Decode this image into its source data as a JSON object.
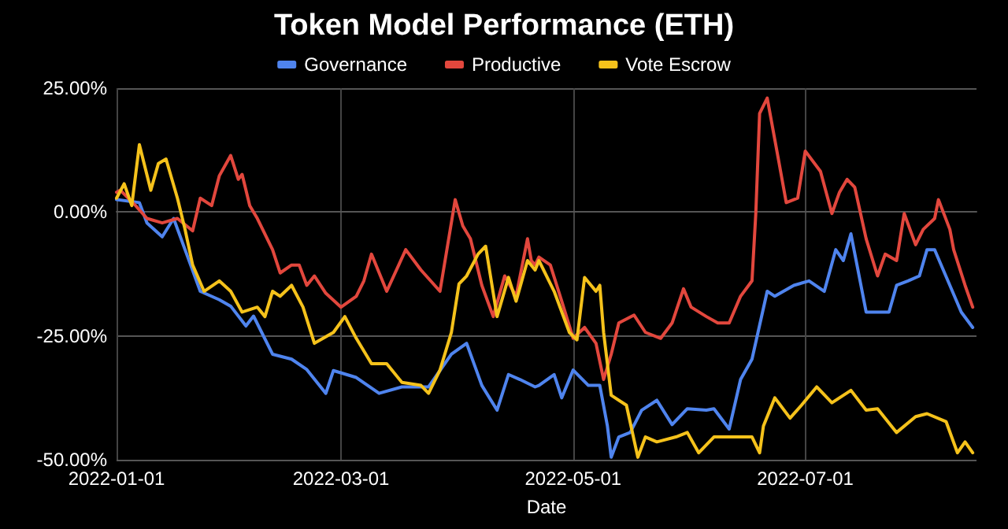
{
  "chart_data": {
    "type": "line",
    "title": "Token Model Performance (ETH)",
    "xlabel": "Date",
    "xlim": [
      "2022-01-01",
      "2022-08-15"
    ],
    "xticks": [
      "2022-01-01",
      "2022-03-01",
      "2022-05-01",
      "2022-07-01"
    ],
    "ylim": [
      -50,
      25
    ],
    "yticks": [
      {
        "value": -50,
        "label": "-50.00%"
      },
      {
        "value": -25,
        "label": "-25.00%"
      },
      {
        "value": 0,
        "label": "0.00%"
      },
      {
        "value": 25,
        "label": "25.00%"
      }
    ],
    "grid": true,
    "legend": "top",
    "marker": "none",
    "line_style": "solid",
    "series": [
      {
        "name": "Governance",
        "color": "#4f84ee",
        "x": [
          "2022-01-01",
          "2022-01-07",
          "2022-01-09",
          "2022-01-13",
          "2022-01-16",
          "2022-01-19",
          "2022-01-23",
          "2022-01-28",
          "2022-01-31",
          "2022-02-04",
          "2022-02-06",
          "2022-02-11",
          "2022-02-16",
          "2022-02-20",
          "2022-02-25",
          "2022-02-27",
          "2022-03-05",
          "2022-03-11",
          "2022-03-17",
          "2022-03-24",
          "2022-03-30",
          "2022-04-03",
          "2022-04-07",
          "2022-04-11",
          "2022-04-14",
          "2022-04-17",
          "2022-04-21",
          "2022-04-22",
          "2022-04-26",
          "2022-04-28",
          "2022-05-01",
          "2022-05-05",
          "2022-05-08",
          "2022-05-10",
          "2022-05-11",
          "2022-05-13",
          "2022-05-16",
          "2022-05-19",
          "2022-05-23",
          "2022-05-27",
          "2022-05-31",
          "2022-06-05",
          "2022-06-07",
          "2022-06-11",
          "2022-06-14",
          "2022-06-17",
          "2022-06-21",
          "2022-06-23",
          "2022-06-28",
          "2022-07-02",
          "2022-07-06",
          "2022-07-09",
          "2022-07-11",
          "2022-07-13",
          "2022-07-17",
          "2022-07-20",
          "2022-07-23",
          "2022-07-25",
          "2022-07-28",
          "2022-07-31",
          "2022-08-02",
          "2022-08-04",
          "2022-08-08",
          "2022-08-11",
          "2022-08-14"
        ],
        "values": [
          2.5,
          1.9,
          -2.2,
          -5,
          -1.3,
          -7.6,
          -16,
          -17.7,
          -19,
          -23,
          -21,
          -28.7,
          -29.7,
          -31.8,
          -36.6,
          -32,
          -33.4,
          -36.6,
          -35.3,
          -35.3,
          -28.7,
          -26.5,
          -35,
          -40,
          -32.8,
          -33.8,
          -35.3,
          -35,
          -32.8,
          -37.5,
          -31.9,
          -35,
          -35,
          -43.2,
          -49.5,
          -45.4,
          -44.5,
          -40,
          -38,
          -42.9,
          -39.7,
          -40,
          -39.7,
          -43.8,
          -33.8,
          -29.7,
          -16,
          -17,
          -14.8,
          -13.9,
          -16,
          -7.6,
          -9.8,
          -4.4,
          -20.2,
          -20.2,
          -20.2,
          -14.8,
          -13.9,
          -12.9,
          -7.6,
          -7.6,
          -14.8,
          -20.2,
          -23.3
        ]
      },
      {
        "name": "Productive",
        "color": "#e2473d",
        "x": [
          "2022-01-01",
          "2022-01-02",
          "2022-01-06",
          "2022-01-09",
          "2022-01-13",
          "2022-01-17",
          "2022-01-21",
          "2022-01-23",
          "2022-01-26",
          "2022-01-28",
          "2022-01-31",
          "2022-02-02",
          "2022-02-03",
          "2022-02-05",
          "2022-02-07",
          "2022-02-11",
          "2022-02-13",
          "2022-02-16",
          "2022-02-18",
          "2022-02-20",
          "2022-02-22",
          "2022-02-25",
          "2022-03-01",
          "2022-03-05",
          "2022-03-07",
          "2022-03-09",
          "2022-03-13",
          "2022-03-18",
          "2022-03-22",
          "2022-03-27",
          "2022-03-31",
          "2022-04-02",
          "2022-04-04",
          "2022-04-07",
          "2022-04-10",
          "2022-04-13",
          "2022-04-16",
          "2022-04-19",
          "2022-04-20",
          "2022-04-21",
          "2022-04-22",
          "2022-04-25",
          "2022-04-28",
          "2022-05-01",
          "2022-05-04",
          "2022-05-07",
          "2022-05-09",
          "2022-05-11",
          "2022-05-13",
          "2022-05-17",
          "2022-05-20",
          "2022-05-24",
          "2022-05-27",
          "2022-05-30",
          "2022-06-01",
          "2022-06-05",
          "2022-06-08",
          "2022-06-11",
          "2022-06-14",
          "2022-06-17",
          "2022-06-18",
          "2022-06-19",
          "2022-06-21",
          "2022-06-24",
          "2022-06-26",
          "2022-06-29",
          "2022-07-01",
          "2022-07-05",
          "2022-07-08",
          "2022-07-10",
          "2022-07-12",
          "2022-07-14",
          "2022-07-17",
          "2022-07-20",
          "2022-07-22",
          "2022-07-25",
          "2022-07-27",
          "2022-07-30",
          "2022-08-01",
          "2022-08-04",
          "2022-08-05",
          "2022-08-08",
          "2022-08-09",
          "2022-08-12",
          "2022-08-14"
        ],
        "values": [
          4,
          4.4,
          1.3,
          -1.3,
          -2.2,
          -1.3,
          -3.8,
          2.8,
          1.3,
          7.3,
          11.4,
          6.6,
          7.6,
          1.3,
          -1.3,
          -7.6,
          -12.3,
          -10.7,
          -10.7,
          -14.8,
          -12.9,
          -16.4,
          -19.2,
          -17,
          -13.9,
          -8.5,
          -16,
          -7.6,
          -11.7,
          -16,
          2.5,
          -2.8,
          -5.4,
          -14.8,
          -21.1,
          -12.9,
          -17,
          -5.4,
          -9.8,
          -10.7,
          -9.1,
          -10.7,
          -18,
          -25.5,
          -23.3,
          -26.5,
          -33.8,
          -28.7,
          -22.4,
          -20.8,
          -24.3,
          -25.5,
          -22.4,
          -15.5,
          -19.2,
          -21.1,
          -22.4,
          -22.4,
          -17,
          -13.9,
          -0.3,
          19.9,
          23,
          10.4,
          1.9,
          2.8,
          12.3,
          8.2,
          -0.3,
          4,
          6.6,
          5,
          -5.4,
          -12.9,
          -8.5,
          -9.8,
          -0.3,
          -6.6,
          -3.5,
          -1.3,
          2.5,
          -3.5,
          -7.6,
          -14.8,
          -19.2
        ]
      },
      {
        "name": "Vote Escrow",
        "color": "#f5c21b",
        "x": [
          "2022-01-01",
          "2022-01-03",
          "2022-01-05",
          "2022-01-07",
          "2022-01-10",
          "2022-01-12",
          "2022-01-14",
          "2022-01-17",
          "2022-01-19",
          "2022-01-21",
          "2022-01-24",
          "2022-01-28",
          "2022-01-31",
          "2022-02-03",
          "2022-02-07",
          "2022-02-09",
          "2022-02-11",
          "2022-02-13",
          "2022-02-16",
          "2022-02-19",
          "2022-02-22",
          "2022-02-27",
          "2022-03-02",
          "2022-03-05",
          "2022-03-09",
          "2022-03-13",
          "2022-03-17",
          "2022-03-22",
          "2022-03-24",
          "2022-03-27",
          "2022-03-30",
          "2022-04-01",
          "2022-04-03",
          "2022-04-06",
          "2022-04-08",
          "2022-04-11",
          "2022-04-14",
          "2022-04-16",
          "2022-04-19",
          "2022-04-21",
          "2022-04-22",
          "2022-04-26",
          "2022-04-30",
          "2022-05-02",
          "2022-05-04",
          "2022-05-07",
          "2022-05-08",
          "2022-05-09",
          "2022-05-11",
          "2022-05-15",
          "2022-05-18",
          "2022-05-20",
          "2022-05-23",
          "2022-05-28",
          "2022-05-31",
          "2022-06-03",
          "2022-06-07",
          "2022-06-11",
          "2022-06-17",
          "2022-06-19",
          "2022-06-20",
          "2022-06-23",
          "2022-06-27",
          "2022-06-30",
          "2022-07-04",
          "2022-07-08",
          "2022-07-13",
          "2022-07-17",
          "2022-07-20",
          "2022-07-25",
          "2022-07-30",
          "2022-08-02",
          "2022-08-07",
          "2022-08-10",
          "2022-08-12",
          "2022-08-14"
        ],
        "values": [
          2.8,
          5.7,
          1.3,
          13.6,
          4.4,
          9.8,
          10.7,
          2.8,
          -3.5,
          -10.7,
          -16,
          -13.9,
          -16,
          -20.2,
          -19.2,
          -21.1,
          -16,
          -17,
          -14.8,
          -19.2,
          -26.5,
          -24.3,
          -21.1,
          -25.5,
          -30.6,
          -30.6,
          -34.4,
          -35,
          -36.6,
          -31.9,
          -24.3,
          -14.5,
          -12.9,
          -8.5,
          -6.9,
          -21.1,
          -13.2,
          -18,
          -9.8,
          -11.7,
          -9.8,
          -16,
          -24.3,
          -25.8,
          -13.2,
          -16,
          -14.8,
          -24.3,
          -37,
          -39,
          -49.5,
          -45.4,
          -46.4,
          -45.4,
          -44.5,
          -48.6,
          -45.4,
          -45.4,
          -45.4,
          -48.6,
          -43.2,
          -37.5,
          -41.6,
          -39,
          -35.3,
          -38.5,
          -36,
          -40,
          -39.7,
          -44.5,
          -41.3,
          -40.7,
          -42.3,
          -48.6,
          -46.4,
          -48.6
        ]
      }
    ]
  }
}
